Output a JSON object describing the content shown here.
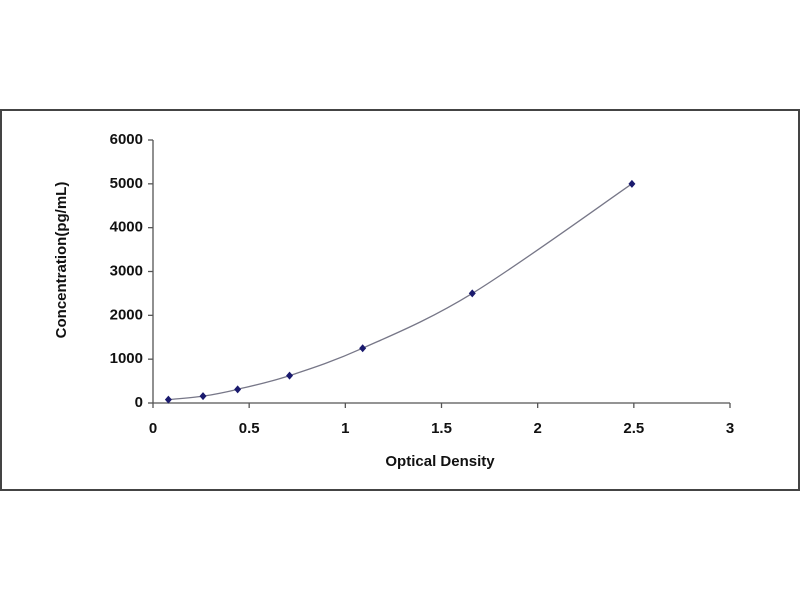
{
  "chart_data": {
    "type": "scatter",
    "x_label": "Optical Density",
    "y_label": "Concentration(pg/mL)",
    "series": [
      {
        "color": "#1a1a6e",
        "line_color": "#777788",
        "x": [
          0.08,
          0.26,
          0.44,
          0.71,
          1.09,
          1.66,
          2.49
        ],
        "values": [
          78,
          156,
          312,
          625,
          1250,
          2500,
          5000
        ]
      }
    ],
    "trendline": true,
    "xlim": [
      0,
      3
    ],
    "xticks": [
      0,
      0.5,
      1,
      1.5,
      2,
      2.5,
      3
    ],
    "ylim": [
      0,
      6000
    ],
    "yticks": [
      0,
      1000,
      2000,
      3000,
      4000,
      5000,
      6000
    ]
  }
}
